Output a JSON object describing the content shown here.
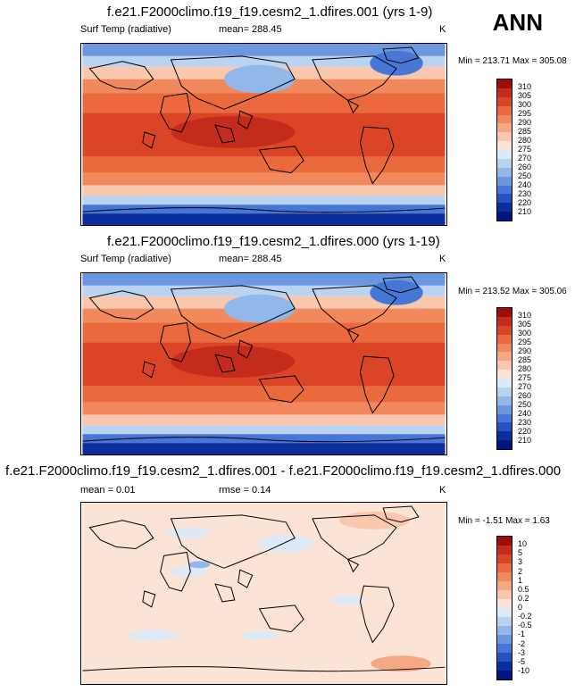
{
  "season": "ANN",
  "panels": [
    {
      "title": "f.e21.F2000climo.f19_f19.cesm2_1.dfires.001 (yrs 1-9)",
      "variable": "Surf Temp (radiative)",
      "mean_label": "mean= 288.45",
      "units": "K",
      "minmax": "Min = 213.71 Max = 305.08",
      "type": "mean"
    },
    {
      "title": "f.e21.F2000climo.f19_f19.cesm2_1.dfires.000 (yrs 1-19)",
      "variable": "Surf Temp (radiative)",
      "mean_label": "mean= 288.45",
      "units": "K",
      "minmax": "Min = 213.52 Max = 305.06",
      "type": "mean"
    },
    {
      "title": "f.e21.F2000climo.f19_f19.cesm2_1.dfires.001 - f.e21.F2000climo.f19_f19.cesm2_1.dfires.000",
      "variable": "mean =   0.01",
      "mean_label": "rmse =   0.14",
      "units": "K",
      "minmax": "Min =  -1.51 Max =   1.63",
      "type": "diff"
    }
  ],
  "chart_data": [
    {
      "type": "heatmap",
      "title": "f.e21.F2000climo.f19_f19.cesm2_1.dfires.001 (yrs 1-9)",
      "colorbar_levels": [
        "310",
        "305",
        "300",
        "295",
        "290",
        "285",
        "280",
        "275",
        "270",
        "260",
        "250",
        "240",
        "230",
        "220",
        "210"
      ],
      "colorbar_colors": [
        "#a00d0d",
        "#c32b1d",
        "#db4425",
        "#ea6a3d",
        "#f2895d",
        "#f6a885",
        "#f9c7ad",
        "#fbe4d6",
        "#dde9f7",
        "#b9d3f0",
        "#92b8ea",
        "#6a97e0",
        "#4676d6",
        "#2750c2",
        "#0c2d9e",
        "#001682"
      ],
      "min": 213.71,
      "max": 305.08,
      "mean": 288.45,
      "units": "K"
    },
    {
      "type": "heatmap",
      "title": "f.e21.F2000climo.f19_f19.cesm2_1.dfires.000 (yrs 1-19)",
      "colorbar_levels": [
        "310",
        "305",
        "300",
        "295",
        "290",
        "285",
        "280",
        "275",
        "270",
        "260",
        "250",
        "240",
        "230",
        "220",
        "210"
      ],
      "colorbar_colors": [
        "#a00d0d",
        "#c32b1d",
        "#db4425",
        "#ea6a3d",
        "#f2895d",
        "#f6a885",
        "#f9c7ad",
        "#fbe4d6",
        "#dde9f7",
        "#b9d3f0",
        "#92b8ea",
        "#6a97e0",
        "#4676d6",
        "#2750c2",
        "#0c2d9e",
        "#001682"
      ],
      "min": 213.52,
      "max": 305.06,
      "mean": 288.45,
      "units": "K"
    },
    {
      "type": "heatmap",
      "title": "f.e21.F2000climo.f19_f19.cesm2_1.dfires.001 - f.e21.F2000climo.f19_f19.cesm2_1.dfires.000",
      "colorbar_levels": [
        "10",
        "5",
        "3",
        "2",
        "1",
        "0.5",
        "0.2",
        "0",
        "-0.2",
        "-0.5",
        "-1",
        "-2",
        "-3",
        "-5",
        "-10"
      ],
      "colorbar_colors": [
        "#a00d0d",
        "#c32b1d",
        "#db4425",
        "#ea6a3d",
        "#f2895d",
        "#f6a885",
        "#f9c7ad",
        "#fbe4d6",
        "#dde9f7",
        "#b9d3f0",
        "#92b8ea",
        "#6a97e0",
        "#4676d6",
        "#2750c2",
        "#0c2d9e",
        "#001682"
      ],
      "min": -1.51,
      "max": 1.63,
      "mean": 0.01,
      "rmse": 0.14,
      "units": "K"
    }
  ]
}
